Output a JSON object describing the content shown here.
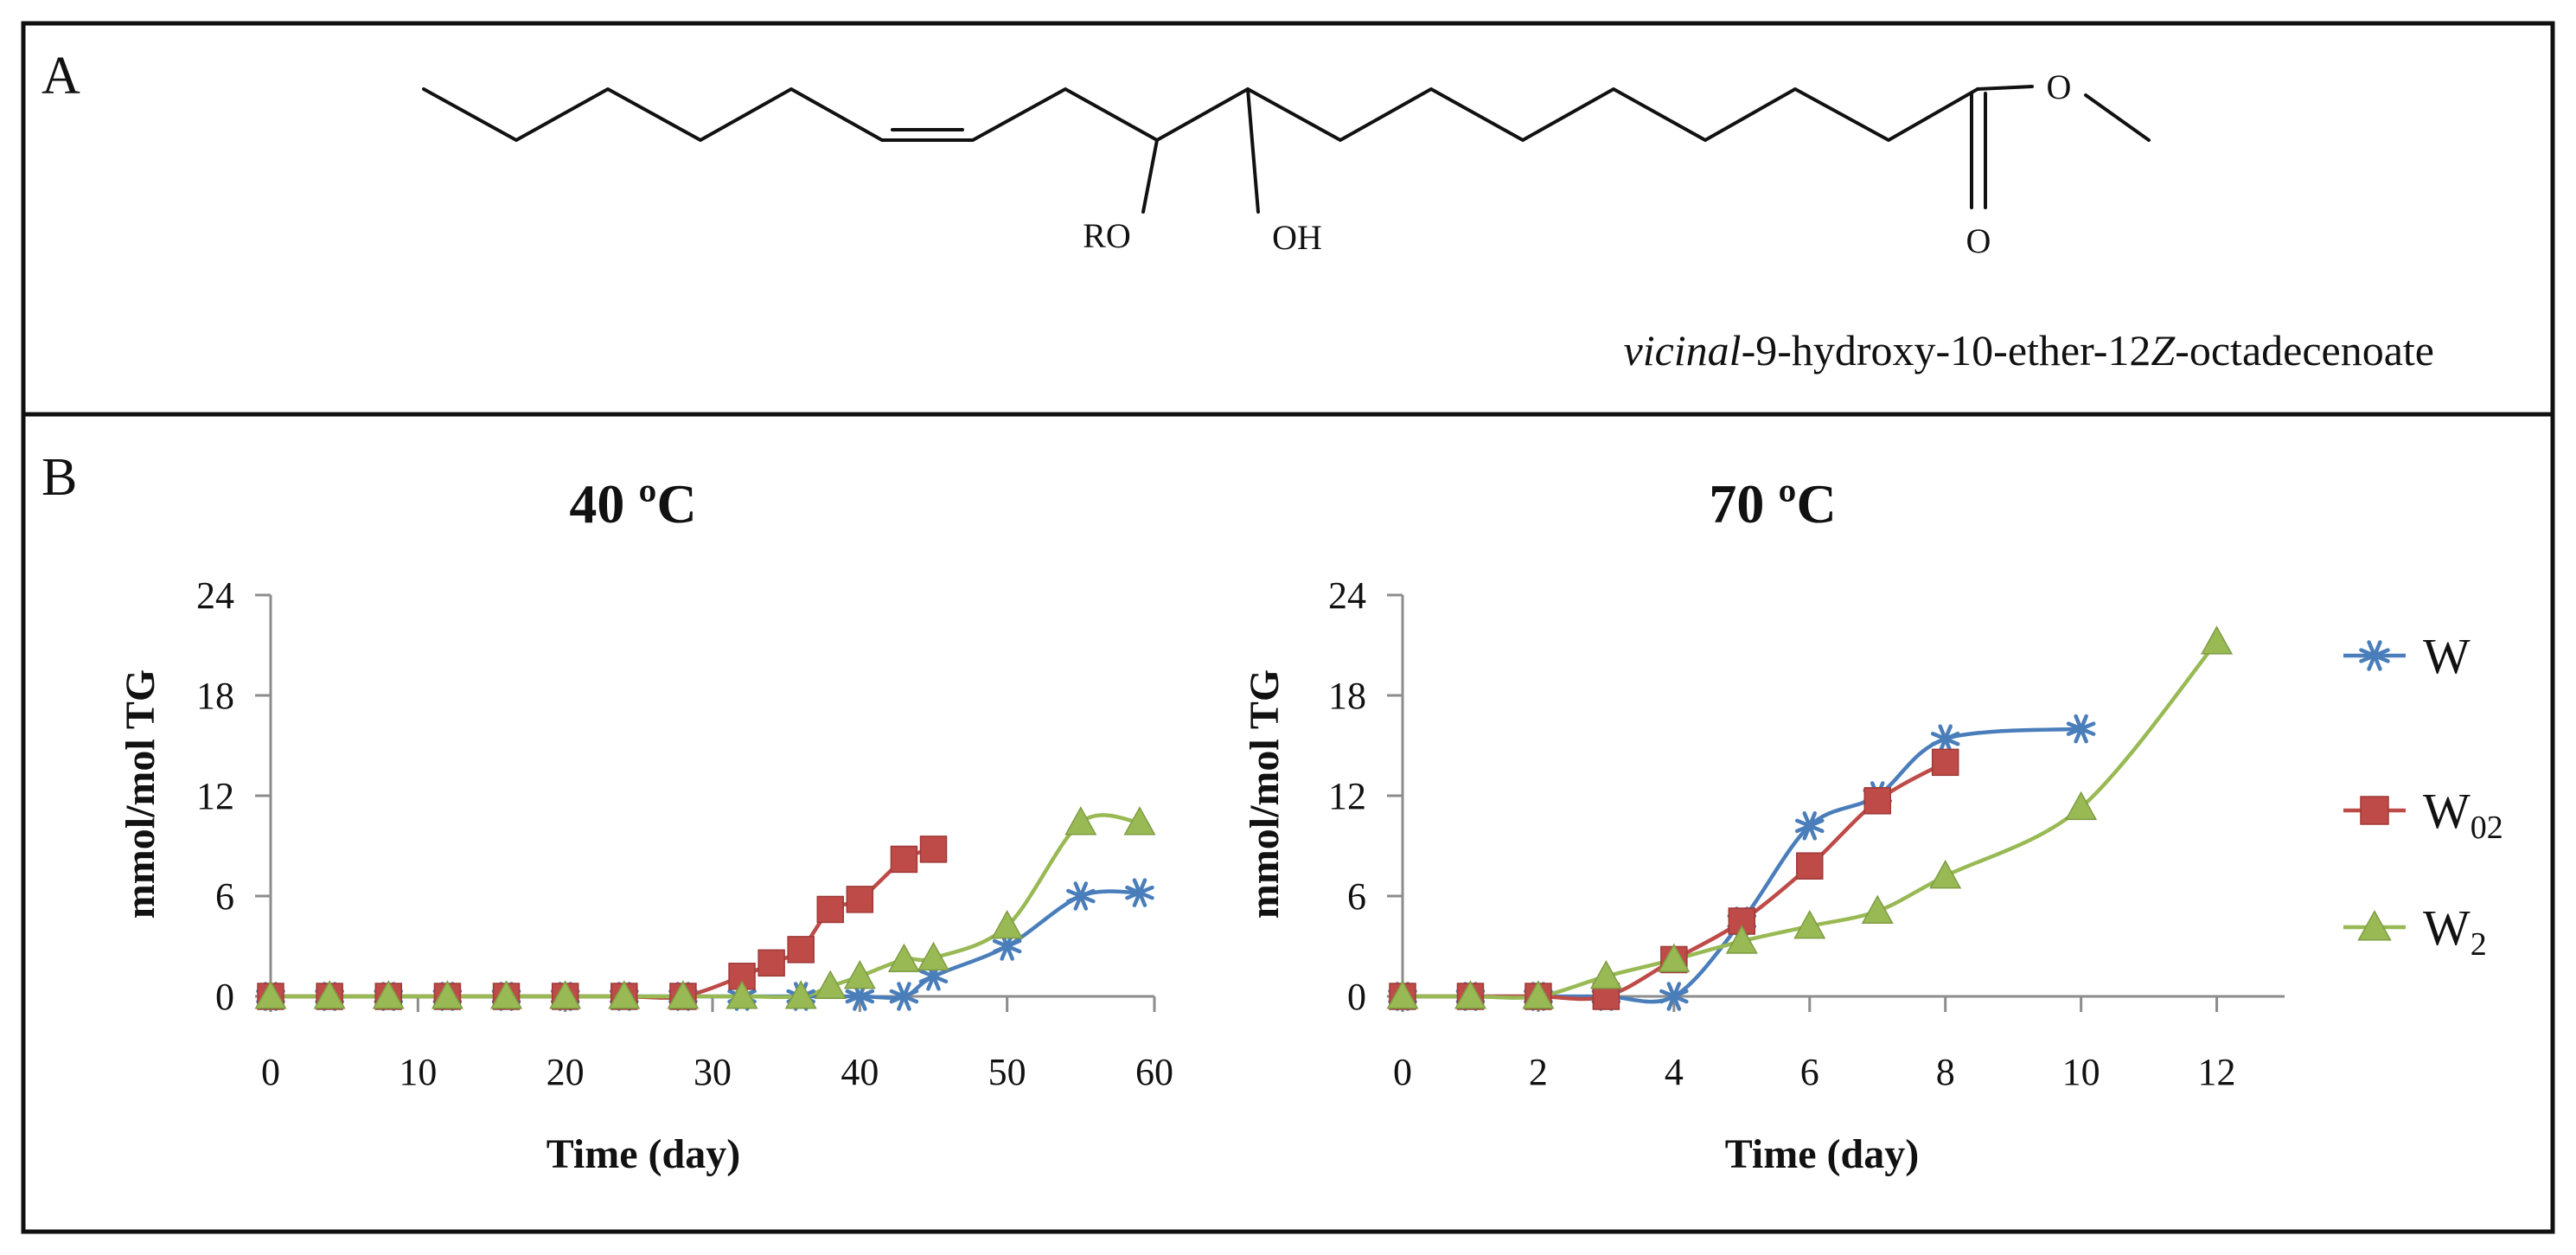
{
  "panel_a": {
    "label": "A",
    "substituent_ro": "RO",
    "substituent_oh": "OH",
    "carbonyl_o": "O",
    "ester_o": "O",
    "caption_italic": "vicinal",
    "caption_rest_1": "-9-hydroxy-10-ether-12",
    "caption_z": "Z",
    "caption_rest_2": "-octadecenoate"
  },
  "panel_b": {
    "label": "B"
  },
  "legend": {
    "items": [
      {
        "name": "W",
        "base": "W",
        "sub": "",
        "color": "#4a7ebb",
        "marker": "asterisk"
      },
      {
        "name": "W02",
        "base": "W",
        "sub": "02",
        "color": "#be4b48",
        "marker": "square"
      },
      {
        "name": "W2",
        "base": "W",
        "sub": "2",
        "color": "#98b954",
        "marker": "triangle"
      }
    ]
  },
  "chart_data": [
    {
      "type": "line",
      "title": "40 ºC",
      "xlabel": "Time (day)",
      "ylabel": "mmol/mol TG",
      "xlim": [
        0,
        60
      ],
      "ylim": [
        0,
        24
      ],
      "x_ticks": [
        "0",
        "10",
        "20",
        "30",
        "40",
        "50",
        "60"
      ],
      "y_ticks": [
        "0",
        "6",
        "12",
        "18",
        "24"
      ],
      "series": [
        {
          "name": "W",
          "x": [
            0,
            4,
            8,
            12,
            16,
            20,
            24,
            28,
            32,
            36,
            40,
            43,
            45,
            50,
            55,
            59
          ],
          "y": [
            0,
            0,
            0,
            0,
            0,
            0,
            0,
            0,
            0,
            0,
            0,
            0,
            1.2,
            3.0,
            6.0,
            6.2
          ]
        },
        {
          "name": "W02",
          "x": [
            0,
            4,
            8,
            12,
            16,
            20,
            24,
            28,
            32,
            34,
            36,
            38,
            40,
            43,
            45
          ],
          "y": [
            0,
            0,
            0,
            0,
            0,
            0,
            0,
            0,
            1.2,
            2.0,
            2.8,
            5.2,
            5.8,
            8.2,
            8.8
          ]
        },
        {
          "name": "W2",
          "x": [
            0,
            4,
            8,
            12,
            16,
            20,
            24,
            28,
            32,
            36,
            38,
            40,
            43,
            45,
            50,
            55,
            59
          ],
          "y": [
            0,
            0,
            0,
            0,
            0,
            0,
            0,
            0,
            0,
            0,
            0.6,
            1.2,
            2.2,
            2.3,
            4.2,
            10.4,
            10.4
          ]
        }
      ]
    },
    {
      "type": "line",
      "title": "70 ºC",
      "xlabel": "Time (day)",
      "ylabel": "mmol/mol TG",
      "xlim": [
        0,
        13
      ],
      "ylim": [
        0,
        24
      ],
      "x_ticks": [
        "0",
        "2",
        "4",
        "6",
        "8",
        "10",
        "12"
      ],
      "y_ticks": [
        "0",
        "6",
        "12",
        "18",
        "24"
      ],
      "series": [
        {
          "name": "W",
          "x": [
            0,
            1,
            2,
            3,
            4,
            5,
            6,
            7,
            8,
            10
          ],
          "y": [
            0,
            0,
            0,
            0,
            0,
            4.5,
            10.2,
            12.0,
            15.4,
            16.0
          ]
        },
        {
          "name": "W02",
          "x": [
            0,
            1,
            2,
            3,
            4,
            5,
            6,
            7,
            8
          ],
          "y": [
            0,
            0,
            0,
            0,
            2.2,
            4.5,
            7.8,
            11.7,
            14.0
          ]
        },
        {
          "name": "W2",
          "x": [
            0,
            1,
            2,
            3,
            4,
            5,
            6,
            7,
            8,
            10,
            12
          ],
          "y": [
            0,
            0,
            0,
            1.2,
            2.2,
            3.3,
            4.2,
            5.1,
            7.2,
            11.3,
            21.2
          ]
        }
      ]
    }
  ]
}
